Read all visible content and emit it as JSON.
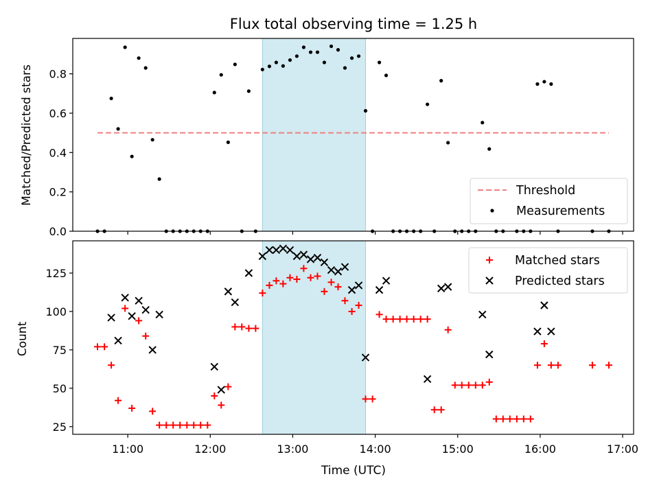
{
  "chart_data": [
    {
      "type": "scatter",
      "title": "Flux total observing time = 1.25 h",
      "ylabel": "Matched/Predicted stars",
      "xlabel": "",
      "xlim": [
        10.333,
        17.133
      ],
      "ylim": [
        0,
        0.98
      ],
      "yticks": [
        0.0,
        0.2,
        0.4,
        0.6,
        0.8
      ],
      "ytick_labels": [
        "0.0",
        "0.2",
        "0.4",
        "0.6",
        "0.8"
      ],
      "xticks": [
        11,
        12,
        13,
        14,
        15,
        16,
        17
      ],
      "grid": false,
      "legend_position": "bottom-right",
      "shaded_interval": [
        12.633,
        13.883
      ],
      "series": [
        {
          "name": "Threshold",
          "kind": "dashed-line",
          "color": "#f08080",
          "x": [
            10.633,
            16.833
          ],
          "y": [
            0.5,
            0.5
          ]
        },
        {
          "name": "Measurements",
          "kind": "dot",
          "color": "#000000",
          "points": [
            [
              10.633,
              0
            ],
            [
              10.717,
              0
            ],
            [
              10.8,
              0.675
            ],
            [
              10.883,
              0.52
            ],
            [
              10.967,
              0.935
            ],
            [
              11.05,
              0.38
            ],
            [
              11.133,
              0.88
            ],
            [
              11.217,
              0.83
            ],
            [
              11.3,
              0.465
            ],
            [
              11.383,
              0.265
            ],
            [
              11.467,
              0
            ],
            [
              11.55,
              0
            ],
            [
              11.633,
              0
            ],
            [
              11.717,
              0
            ],
            [
              11.8,
              0
            ],
            [
              11.883,
              0
            ],
            [
              11.967,
              0
            ],
            [
              12.05,
              0.705
            ],
            [
              12.133,
              0.795
            ],
            [
              12.217,
              0.452
            ],
            [
              12.3,
              0.848
            ],
            [
              12.383,
              0
            ],
            [
              12.467,
              0.712
            ],
            [
              12.55,
              0
            ],
            [
              12.633,
              0.822
            ],
            [
              12.717,
              0.838
            ],
            [
              12.8,
              0.858
            ],
            [
              12.883,
              0.84
            ],
            [
              12.967,
              0.87
            ],
            [
              13.05,
              0.89
            ],
            [
              13.133,
              0.935
            ],
            [
              13.217,
              0.91
            ],
            [
              13.3,
              0.91
            ],
            [
              13.383,
              0.858
            ],
            [
              13.467,
              0.94
            ],
            [
              13.55,
              0.922
            ],
            [
              13.633,
              0.83
            ],
            [
              13.717,
              0.88
            ],
            [
              13.8,
              0.89
            ],
            [
              13.883,
              0.612
            ],
            [
              13.967,
              0
            ],
            [
              14.05,
              0.858
            ],
            [
              14.133,
              0.792
            ],
            [
              14.217,
              0
            ],
            [
              14.3,
              0
            ],
            [
              14.383,
              0
            ],
            [
              14.467,
              0
            ],
            [
              14.55,
              0
            ],
            [
              14.633,
              0.645
            ],
            [
              14.717,
              0
            ],
            [
              14.8,
              0.765
            ],
            [
              14.883,
              0.45
            ],
            [
              14.967,
              0
            ],
            [
              15.05,
              0
            ],
            [
              15.133,
              0
            ],
            [
              15.217,
              0
            ],
            [
              15.3,
              0.552
            ],
            [
              15.383,
              0.418
            ],
            [
              15.467,
              0
            ],
            [
              15.55,
              0
            ],
            [
              15.717,
              0
            ],
            [
              15.8,
              0
            ],
            [
              15.883,
              0
            ],
            [
              15.967,
              0.748
            ],
            [
              16.05,
              0.76
            ],
            [
              16.133,
              0.748
            ],
            [
              16.217,
              0
            ],
            [
              16.633,
              0
            ],
            [
              16.833,
              0
            ]
          ]
        }
      ]
    },
    {
      "type": "scatter",
      "title": "",
      "ylabel": "Count",
      "xlabel": "Time (UTC)",
      "xlim": [
        10.333,
        17.133
      ],
      "ylim": [
        20,
        146
      ],
      "yticks": [
        25,
        50,
        75,
        100,
        125
      ],
      "ytick_labels": [
        "25",
        "50",
        "75",
        "100",
        "125"
      ],
      "xticks": [
        11,
        12,
        13,
        14,
        15,
        16,
        17
      ],
      "xtick_labels": [
        "11:00",
        "12:00",
        "13:00",
        "14:00",
        "15:00",
        "16:00",
        "17:00"
      ],
      "grid": false,
      "legend_position": "top-right",
      "shaded_interval": [
        12.633,
        13.883
      ],
      "series": [
        {
          "name": "Matched stars",
          "marker": "plus",
          "color": "#ff0000",
          "points": [
            [
              10.633,
              77
            ],
            [
              10.717,
              77
            ],
            [
              10.8,
              65
            ],
            [
              10.883,
              42
            ],
            [
              10.967,
              102
            ],
            [
              11.05,
              37
            ],
            [
              11.133,
              94
            ],
            [
              11.217,
              84
            ],
            [
              11.3,
              35
            ],
            [
              11.383,
              26
            ],
            [
              11.467,
              26
            ],
            [
              11.55,
              26
            ],
            [
              11.633,
              26
            ],
            [
              11.717,
              26
            ],
            [
              11.8,
              26
            ],
            [
              11.883,
              26
            ],
            [
              11.967,
              26
            ],
            [
              12.05,
              45
            ],
            [
              12.133,
              39
            ],
            [
              12.217,
              51
            ],
            [
              12.3,
              90
            ],
            [
              12.383,
              90
            ],
            [
              12.467,
              89
            ],
            [
              12.55,
              89
            ],
            [
              12.633,
              112
            ],
            [
              12.717,
              117
            ],
            [
              12.8,
              120
            ],
            [
              12.883,
              118
            ],
            [
              12.967,
              122
            ],
            [
              13.05,
              121
            ],
            [
              13.133,
              128
            ],
            [
              13.217,
              122
            ],
            [
              13.3,
              123
            ],
            [
              13.383,
              113
            ],
            [
              13.467,
              119
            ],
            [
              13.55,
              116
            ],
            [
              13.633,
              107
            ],
            [
              13.717,
              100
            ],
            [
              13.8,
              104
            ],
            [
              13.883,
              43
            ],
            [
              13.967,
              43
            ],
            [
              14.05,
              98
            ],
            [
              14.133,
              95
            ],
            [
              14.217,
              95
            ],
            [
              14.3,
              95
            ],
            [
              14.383,
              95
            ],
            [
              14.467,
              95
            ],
            [
              14.55,
              95
            ],
            [
              14.633,
              95
            ],
            [
              14.717,
              36
            ],
            [
              14.8,
              36
            ],
            [
              14.883,
              88
            ],
            [
              14.967,
              52
            ],
            [
              15.05,
              52
            ],
            [
              15.133,
              52
            ],
            [
              15.217,
              52
            ],
            [
              15.3,
              52
            ],
            [
              15.383,
              54
            ],
            [
              15.467,
              30
            ],
            [
              15.55,
              30
            ],
            [
              15.633,
              30
            ],
            [
              15.717,
              30
            ],
            [
              15.8,
              30
            ],
            [
              15.883,
              30
            ],
            [
              15.967,
              65
            ],
            [
              16.05,
              79
            ],
            [
              16.133,
              65
            ],
            [
              16.217,
              65
            ],
            [
              16.633,
              65
            ],
            [
              16.833,
              65
            ]
          ]
        },
        {
          "name": "Predicted stars",
          "marker": "x",
          "color": "#000000",
          "points": [
            [
              10.8,
              96
            ],
            [
              10.883,
              81
            ],
            [
              10.967,
              109
            ],
            [
              11.05,
              97
            ],
            [
              11.133,
              107
            ],
            [
              11.217,
              101
            ],
            [
              11.3,
              75
            ],
            [
              11.383,
              98
            ],
            [
              12.05,
              64
            ],
            [
              12.133,
              49
            ],
            [
              12.217,
              113
            ],
            [
              12.3,
              106
            ],
            [
              12.467,
              125
            ],
            [
              12.633,
              136
            ],
            [
              12.717,
              140
            ],
            [
              12.8,
              140
            ],
            [
              12.883,
              141
            ],
            [
              12.967,
              140
            ],
            [
              13.05,
              136
            ],
            [
              13.133,
              137
            ],
            [
              13.217,
              134
            ],
            [
              13.3,
              135
            ],
            [
              13.383,
              132
            ],
            [
              13.467,
              127
            ],
            [
              13.55,
              126
            ],
            [
              13.633,
              129
            ],
            [
              13.717,
              114
            ],
            [
              13.8,
              117
            ],
            [
              13.883,
              70
            ],
            [
              14.05,
              114
            ],
            [
              14.133,
              120
            ],
            [
              14.633,
              56
            ],
            [
              14.8,
              115
            ],
            [
              14.883,
              116
            ],
            [
              15.3,
              98
            ],
            [
              15.383,
              72
            ],
            [
              15.967,
              87
            ],
            [
              16.05,
              104
            ],
            [
              16.133,
              87
            ]
          ]
        }
      ]
    }
  ]
}
